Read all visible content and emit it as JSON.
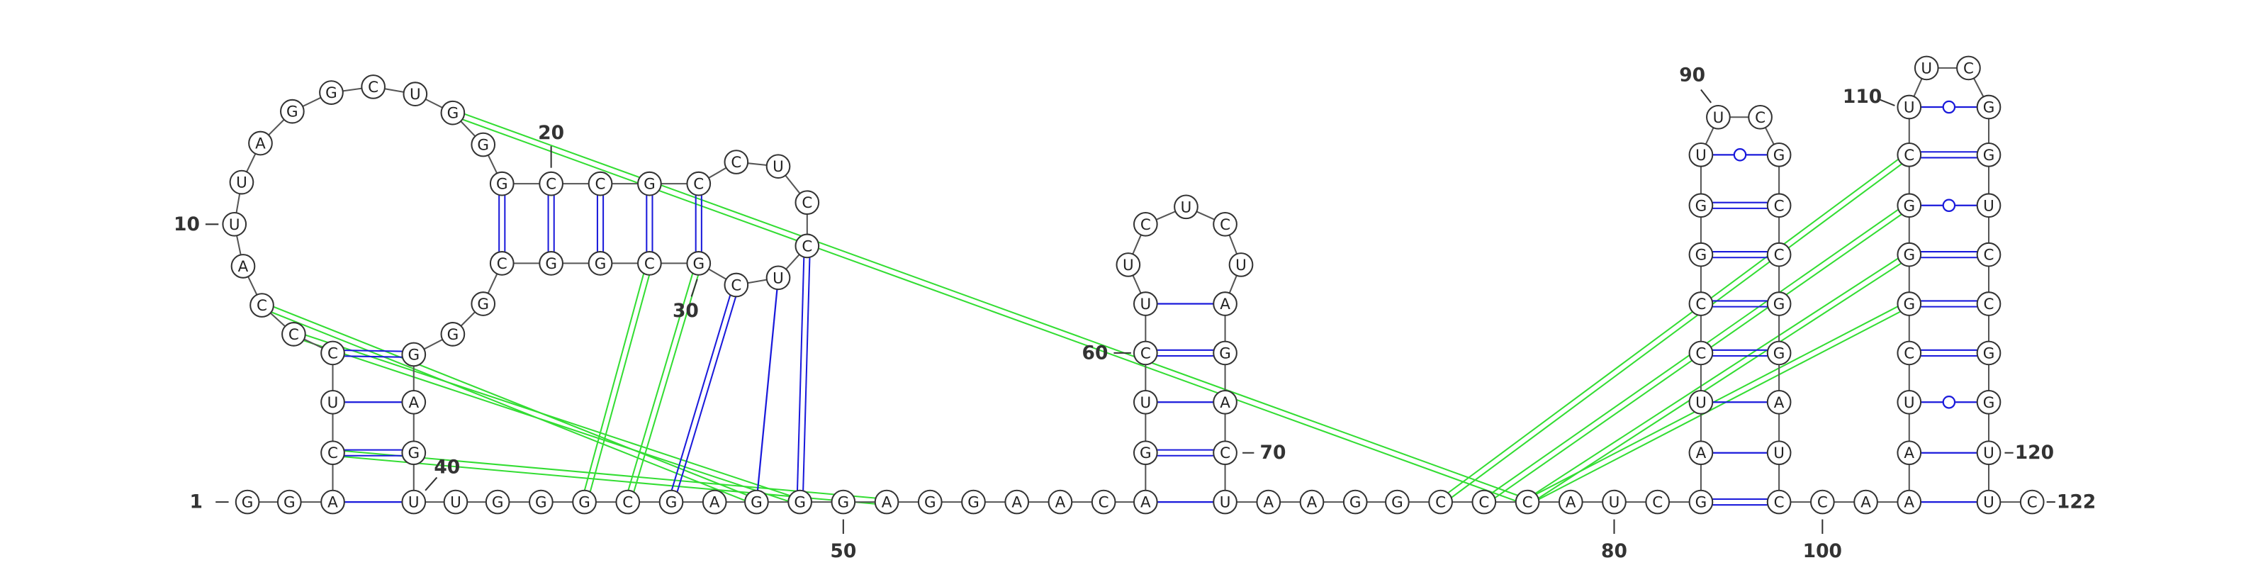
{
  "nucleotides": [
    "G",
    "G",
    "A",
    "C",
    "U",
    "C",
    "C",
    "C",
    "A",
    "U",
    "U",
    "A",
    "G",
    "G",
    "C",
    "U",
    "G",
    "G",
    "G",
    "C",
    "C",
    "G",
    "C",
    "C",
    "U",
    "C",
    "C",
    "U",
    "C",
    "G",
    "C",
    "G",
    "G",
    "C",
    "G",
    "G",
    "G",
    "A",
    "G",
    "U",
    "U",
    "G",
    "G",
    "G",
    "C",
    "G",
    "A",
    "G",
    "G",
    "G",
    "A",
    "G",
    "G",
    "A",
    "A",
    "C",
    "A",
    "G",
    "U",
    "C",
    "U",
    "U",
    "C",
    "U",
    "C",
    "U",
    "A",
    "G",
    "A",
    "C",
    "U",
    "A",
    "A",
    "G",
    "G",
    "C",
    "C",
    "C",
    "A",
    "U",
    "C",
    "G",
    "A",
    "U",
    "C",
    "C",
    "G",
    "G",
    "U",
    "U",
    "C",
    "G",
    "C",
    "C",
    "G",
    "G",
    "A",
    "U",
    "C",
    "C",
    "A",
    "A",
    "A",
    "U",
    "C",
    "G",
    "G",
    "G",
    "C",
    "U",
    "U",
    "C",
    "G",
    "G",
    "U",
    "C",
    "C",
    "G",
    "G",
    "U",
    "U",
    "C"
  ],
  "position_labels": [
    "1",
    "10",
    "20",
    "30",
    "40",
    "50",
    "60",
    "70",
    "80",
    "90",
    "100",
    "110",
    "120",
    "122"
  ]
}
